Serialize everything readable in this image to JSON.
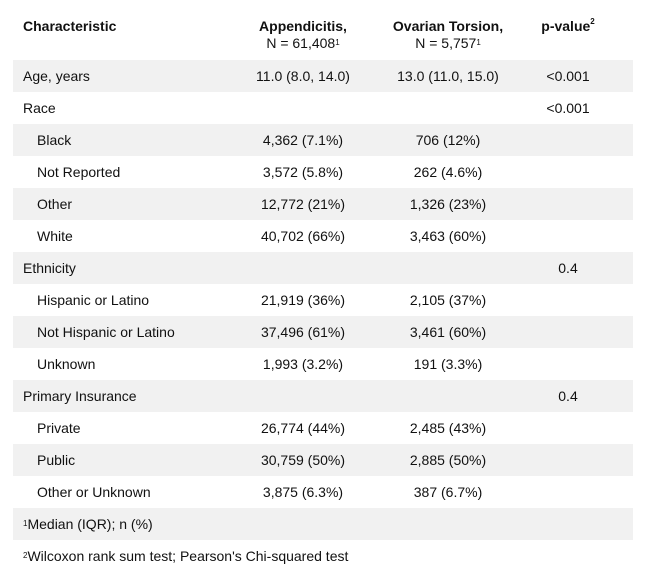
{
  "header": {
    "characteristic": "Characteristic",
    "appendicitis_title": "Appendicitis,",
    "appendicitis_n": "N = 61,408",
    "ovarian_title": "Ovarian Torsion,",
    "ovarian_n": "N = 5,757",
    "pvalue": "p-value",
    "sup1": "1",
    "sup2": "2"
  },
  "rows": [
    {
      "label": "Age, years",
      "app": "11.0 (8.0, 14.0)",
      "ov": "13.0 (11.0, 15.0)",
      "p": "<0.001"
    },
    {
      "label": "Race",
      "app": "",
      "ov": "",
      "p": "<0.001"
    },
    {
      "label": "Black",
      "app": "4,362 (7.1%)",
      "ov": "706 (12%)",
      "p": ""
    },
    {
      "label": "Not Reported",
      "app": "3,572 (5.8%)",
      "ov": "262 (4.6%)",
      "p": ""
    },
    {
      "label": "Other",
      "app": "12,772 (21%)",
      "ov": "1,326 (23%)",
      "p": ""
    },
    {
      "label": "White",
      "app": "40,702 (66%)",
      "ov": "3,463 (60%)",
      "p": ""
    },
    {
      "label": "Ethnicity",
      "app": "",
      "ov": "",
      "p": "0.4"
    },
    {
      "label": "Hispanic or Latino",
      "app": "21,919 (36%)",
      "ov": "2,105 (37%)",
      "p": ""
    },
    {
      "label": "Not Hispanic or Latino",
      "app": "37,496 (61%)",
      "ov": "3,461 (60%)",
      "p": ""
    },
    {
      "label": "Unknown",
      "app": "1,993 (3.2%)",
      "ov": "191 (3.3%)",
      "p": ""
    },
    {
      "label": "Primary Insurance",
      "app": "",
      "ov": "",
      "p": "0.4"
    },
    {
      "label": "Private",
      "app": "26,774 (44%)",
      "ov": "2,485 (43%)",
      "p": ""
    },
    {
      "label": "Public",
      "app": "30,759 (50%)",
      "ov": "2,885 (50%)",
      "p": ""
    },
    {
      "label": "Other or Unknown",
      "app": "3,875 (6.3%)",
      "ov": "387 (6.7%)",
      "p": ""
    }
  ],
  "footnotes": {
    "f1_sup": "1",
    "f1_text": "Median (IQR); n (%)",
    "f2_sup": "2",
    "f2_text": "Wilcoxon rank sum test; Pearson's Chi-squared test"
  }
}
